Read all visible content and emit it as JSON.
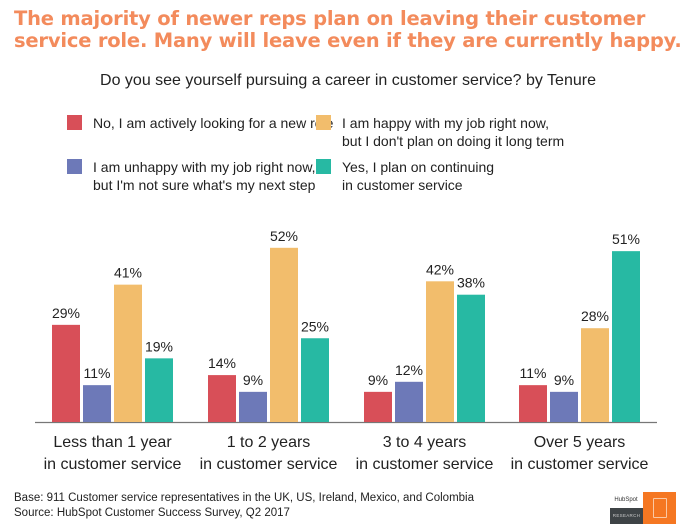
{
  "headline": "The majority of newer reps plan on leaving their customer service role. Many will leave even if they are currently happy.",
  "footer": {
    "base": "Base: 911 Customer service representatives in the UK, US, Ireland, Mexico, and Colombia",
    "source": "Source: HubSpot Customer Success Survey, Q2 2017",
    "logo_brand": "HubSpot",
    "logo_label": "RESEARCH"
  },
  "chart_data": {
    "type": "bar",
    "title": "Do you see yourself pursuing a career in customer service? by Tenure",
    "xlabel": "",
    "ylabel": "",
    "ylim": [
      0,
      60
    ],
    "grid": false,
    "legend_position": "top",
    "categories": [
      "Less than 1 year\nin customer service",
      "1 to 2 years\nin customer service",
      "3 to 4 years\nin customer service",
      "Over 5 years\nin customer service"
    ],
    "series": [
      {
        "name": "No, I am actively looking for a new role",
        "color": "#d84f58",
        "values": [
          29,
          14,
          9,
          11
        ],
        "labels": [
          "29%",
          "14%",
          "9%",
          "11%"
        ]
      },
      {
        "name": "I am unhappy with my job right now,\nbut I'm not sure what's my next step",
        "color": "#6d79b8",
        "values": [
          11,
          9,
          12,
          9
        ],
        "labels": [
          "11%",
          "9%",
          "12%",
          "9%"
        ]
      },
      {
        "name": "I am happy with my job right now,\nbut I don't plan on doing it long term",
        "color": "#f2bd6c",
        "values": [
          41,
          52,
          42,
          28
        ],
        "labels": [
          "41%",
          "52%",
          "42%",
          "28%"
        ]
      },
      {
        "name": "Yes, I plan on continuing\nin customer service",
        "color": "#27b9a3",
        "values": [
          19,
          25,
          38,
          51
        ],
        "labels": [
          "19%",
          "25%",
          "38%",
          "51%"
        ]
      }
    ]
  }
}
